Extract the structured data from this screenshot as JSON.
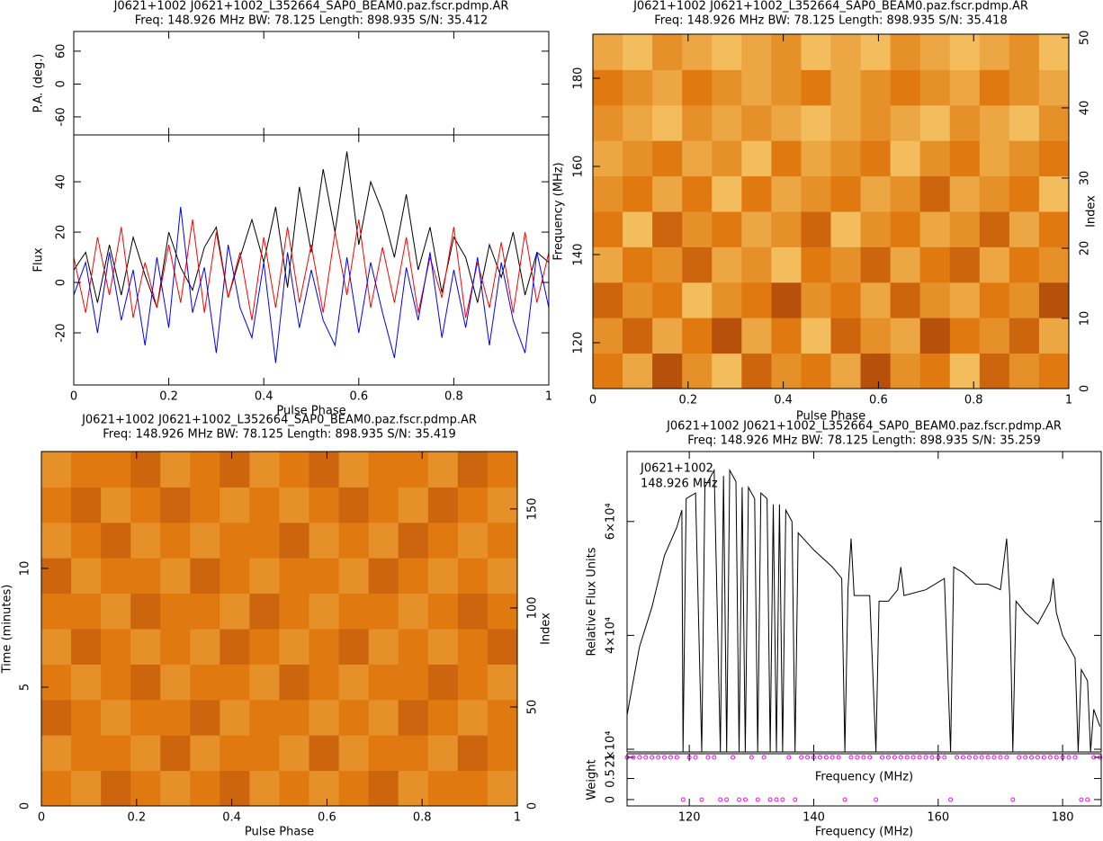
{
  "chart_data": [
    {
      "type": "profile",
      "title": "J0621+1002  J0621+1002_L352664_SAP0_BEAM0.paz.fscr.pdmp.AR",
      "subtitle": "Freq: 148.926 MHz BW: 78.125 Length: 898.935 S/N: 35.412",
      "xlabel": "Pulse Phase",
      "ylabel": "Flux",
      "xlim": [
        0,
        1
      ],
      "xticks": [
        0,
        0.2,
        0.4,
        0.6,
        0.8,
        1
      ],
      "ylim": [
        -40.7,
        58.6
      ],
      "yticks": [
        -20,
        0,
        20,
        40
      ],
      "pa": {
        "ylabel": "P.A. (deg.)",
        "ylim": [
          -93,
          96
        ],
        "yticks": [
          -60,
          0,
          60
        ]
      },
      "x": [
        0,
        0.025,
        0.05,
        0.075,
        0.1,
        0.125,
        0.15,
        0.175,
        0.2,
        0.225,
        0.25,
        0.275,
        0.3,
        0.325,
        0.35,
        0.375,
        0.4,
        0.425,
        0.45,
        0.475,
        0.5,
        0.525,
        0.55,
        0.575,
        0.6,
        0.625,
        0.65,
        0.675,
        0.7,
        0.725,
        0.75,
        0.775,
        0.8,
        0.825,
        0.85,
        0.875,
        0.9,
        0.925,
        0.95,
        0.975,
        1
      ],
      "series": [
        {
          "color": "#000000",
          "values": [
            5,
            12,
            -8,
            15,
            -5,
            18,
            3,
            -10,
            20,
            6,
            -3,
            14,
            22,
            -6,
            10,
            25,
            8,
            30,
            -2,
            38,
            12,
            45,
            20,
            52,
            15,
            40,
            28,
            10,
            35,
            5,
            22,
            -4,
            18,
            10,
            -8,
            15,
            2,
            20,
            -5,
            12,
            8
          ]
        },
        {
          "color": "#ff0000",
          "values": [
            10,
            -12,
            18,
            -5,
            22,
            -14,
            8,
            -10,
            15,
            -8,
            25,
            -12,
            20,
            -6,
            12,
            -15,
            18,
            -10,
            22,
            -8,
            15,
            -12,
            20,
            -5,
            25,
            -10,
            14,
            -8,
            18,
            -12,
            10,
            -6,
            22,
            -14,
            8,
            -10,
            16,
            -12,
            20,
            -8,
            12
          ]
        },
        {
          "color": "#0000ff",
          "values": [
            -5,
            8,
            -20,
            12,
            -15,
            5,
            -25,
            10,
            -18,
            30,
            -12,
            6,
            -28,
            15,
            -10,
            -22,
            8,
            -32,
            12,
            -18,
            5,
            -15,
            -25,
            10,
            -20,
            8,
            -12,
            -30,
            6,
            -15,
            12,
            -22,
            5,
            -18,
            10,
            -25,
            8,
            -15,
            -28,
            12,
            -10
          ]
        }
      ]
    },
    {
      "type": "heatmap",
      "title": "J0621+1002  J0621+1002_L352664_SAP0_BEAM0.paz.fscr.pdmp.AR",
      "subtitle": "Freq: 148.926 MHz BW: 78.125 Length: 898.935 S/N: 35.418",
      "xlabel": "Pulse Phase",
      "ylabel": "Frequency (MHz)",
      "y2label": "Index",
      "xlim": [
        0,
        1
      ],
      "xticks": [
        0,
        0.2,
        0.4,
        0.6,
        0.8,
        1
      ],
      "ylim": [
        109.6,
        190
      ],
      "yticks": [
        120,
        140,
        160,
        180
      ],
      "y2lim": [
        0,
        50.5
      ],
      "y2ticks": [
        0,
        10,
        20,
        30,
        40,
        50
      ],
      "colors": [
        "#7a1000",
        "#e07a10",
        "#ffe890"
      ],
      "z": [
        [
          0.5,
          0.7,
          0.3,
          0.6,
          0.8,
          0.4,
          0.6,
          0.5,
          0.7,
          0.3,
          0.6,
          0.5,
          0.8,
          0.4,
          0.6,
          0.5
        ],
        [
          0.6,
          0.4,
          0.7,
          0.5,
          0.3,
          0.7,
          0.5,
          0.8,
          0.4,
          0.6,
          0.7,
          0.3,
          0.5,
          0.6,
          0.4,
          0.7
        ],
        [
          0.4,
          0.6,
          0.5,
          0.8,
          0.6,
          0.5,
          0.3,
          0.6,
          0.5,
          0.7,
          0.4,
          0.6,
          0.7,
          0.5,
          0.6,
          0.3
        ],
        [
          0.7,
          0.5,
          0.6,
          0.4,
          0.7,
          0.6,
          0.8,
          0.5,
          0.6,
          0.4,
          0.7,
          0.5,
          0.4,
          0.7,
          0.5,
          0.6
        ],
        [
          0.5,
          0.8,
          0.4,
          0.6,
          0.5,
          0.7,
          0.6,
          0.4,
          0.8,
          0.6,
          0.5,
          0.7,
          0.6,
          0.4,
          0.7,
          0.5
        ],
        [
          0.6,
          0.5,
          0.7,
          0.5,
          0.8,
          0.5,
          0.7,
          0.6,
          0.5,
          0.7,
          0.6,
          0.4,
          0.7,
          0.6,
          0.5,
          0.8
        ],
        [
          0.7,
          0.6,
          0.5,
          0.7,
          0.6,
          0.8,
          0.5,
          0.7,
          0.6,
          0.5,
          0.8,
          0.6,
          0.5,
          0.7,
          0.6,
          0.5
        ],
        [
          0.6,
          0.7,
          0.8,
          0.6,
          0.7,
          0.6,
          0.7,
          0.8,
          0.7,
          0.6,
          0.7,
          0.8,
          0.6,
          0.7,
          0.8,
          0.6
        ],
        [
          0.5,
          0.6,
          0.7,
          0.5,
          0.6,
          0.7,
          0.6,
          0.5,
          0.7,
          0.6,
          0.5,
          0.6,
          0.7,
          0.5,
          0.6,
          0.7
        ],
        [
          0.7,
          0.8,
          0.6,
          0.7,
          0.8,
          0.7,
          0.6,
          0.8,
          0.7,
          0.8,
          0.6,
          0.7,
          0.8,
          0.7,
          0.6,
          0.8
        ]
      ]
    },
    {
      "type": "heatmap",
      "title": "J0621+1002  J0621+1002_L352664_SAP0_BEAM0.paz.fscr.pdmp.AR",
      "subtitle": "Freq: 148.926 MHz BW: 78.125 Length: 898.935 S/N: 35.419",
      "xlabel": "Pulse Phase",
      "ylabel": "Time (minutes)",
      "y2label": "Index",
      "xlim": [
        0,
        1
      ],
      "xticks": [
        0,
        0.2,
        0.4,
        0.6,
        0.8,
        1
      ],
      "ylim": [
        0,
        14.92
      ],
      "yticks": [
        0,
        5,
        10
      ],
      "y2lim": [
        0,
        179
      ],
      "y2ticks": [
        0,
        50,
        100,
        150
      ],
      "colors": [
        "#7a1000",
        "#e07a10",
        "#ffe890"
      ],
      "z": [
        [
          0.5,
          0.6,
          0.4,
          0.5,
          0.6,
          0.5,
          0.4,
          0.6,
          0.5,
          0.6,
          0.5,
          0.4,
          0.6,
          0.5,
          0.5,
          0.6
        ],
        [
          0.6,
          0.5,
          0.5,
          0.6,
          0.4,
          0.6,
          0.5,
          0.5,
          0.6,
          0.4,
          0.6,
          0.5,
          0.5,
          0.6,
          0.4,
          0.5
        ],
        [
          0.4,
          0.5,
          0.6,
          0.5,
          0.5,
          0.4,
          0.6,
          0.5,
          0.5,
          0.6,
          0.5,
          0.6,
          0.4,
          0.5,
          0.6,
          0.5
        ],
        [
          0.5,
          0.6,
          0.5,
          0.4,
          0.6,
          0.5,
          0.5,
          0.6,
          0.4,
          0.5,
          0.6,
          0.5,
          0.5,
          0.4,
          0.5,
          0.6
        ],
        [
          0.6,
          0.4,
          0.5,
          0.6,
          0.5,
          0.6,
          0.4,
          0.5,
          0.6,
          0.5,
          0.4,
          0.6,
          0.5,
          0.6,
          0.5,
          0.4
        ],
        [
          0.5,
          0.5,
          0.6,
          0.4,
          0.5,
          0.5,
          0.6,
          0.4,
          0.5,
          0.6,
          0.5,
          0.5,
          0.6,
          0.5,
          0.4,
          0.5
        ],
        [
          0.4,
          0.6,
          0.5,
          0.5,
          0.6,
          0.4,
          0.5,
          0.6,
          0.5,
          0.5,
          0.6,
          0.4,
          0.5,
          0.6,
          0.5,
          0.6
        ],
        [
          0.6,
          0.5,
          0.4,
          0.6,
          0.5,
          0.6,
          0.5,
          0.5,
          0.4,
          0.6,
          0.5,
          0.6,
          0.4,
          0.5,
          0.6,
          0.5
        ],
        [
          0.5,
          0.4,
          0.6,
          0.5,
          0.4,
          0.5,
          0.6,
          0.5,
          0.6,
          0.5,
          0.4,
          0.5,
          0.6,
          0.4,
          0.5,
          0.6
        ],
        [
          0.6,
          0.5,
          0.5,
          0.4,
          0.6,
          0.5,
          0.4,
          0.6,
          0.5,
          0.4,
          0.6,
          0.5,
          0.5,
          0.6,
          0.4,
          0.5
        ]
      ]
    },
    {
      "type": "spectrum",
      "title": "J0621+1002  J0621+1002_L352664_SAP0_BEAM0.paz.fscr.pdmp.AR",
      "subtitle": "Freq: 148.926 MHz BW: 78.125 Length: 898.935 S/N: 35.259",
      "annotations": [
        "J0621+1002",
        "148.926 MHz"
      ],
      "xlabel": "Frequency (MHz)",
      "ylabel": "Relative Flux Units",
      "xlim": [
        110,
        186.2
      ],
      "xticks": [
        120,
        140,
        160,
        180
      ],
      "ylim": [
        19528,
        72283
      ],
      "yticks": [
        {
          "value": 20000,
          "label": "2×10⁴"
        },
        {
          "value": 40000,
          "label": "4×10⁴"
        },
        {
          "value": 60000,
          "label": "6×10⁴"
        }
      ],
      "color": "#000000",
      "x": [
        110,
        112,
        114,
        116,
        118,
        118.8,
        119,
        119.5,
        121,
        122,
        122.5,
        124,
        125,
        125.5,
        126,
        126.5,
        127.5,
        128,
        128.5,
        129,
        129.5,
        130.5,
        131,
        131.5,
        132.5,
        133,
        133.5,
        134,
        134.5,
        135,
        135.5,
        136.5,
        137,
        137.5,
        140,
        143,
        144.5,
        145,
        145.5,
        146,
        146.5,
        149,
        150,
        150.5,
        152,
        153.5,
        154,
        154.5,
        158,
        161,
        162,
        162.5,
        164,
        166,
        168,
        170,
        171,
        171.5,
        172,
        172.5,
        174,
        176,
        178,
        178.5,
        179,
        180,
        182,
        182.5,
        183,
        184,
        184.5,
        185,
        186
      ],
      "values": [
        26000,
        38000,
        45000,
        54000,
        59000,
        62000,
        19600,
        64000,
        65000,
        19600,
        66000,
        69000,
        19600,
        68000,
        19600,
        69000,
        67000,
        19600,
        66000,
        19600,
        66000,
        64000,
        19600,
        65000,
        64000,
        19600,
        63000,
        19600,
        63000,
        19600,
        62000,
        60000,
        19600,
        58000,
        55000,
        52000,
        50000,
        19600,
        48000,
        57000,
        47000,
        47000,
        19600,
        46000,
        46000,
        48000,
        52000,
        47000,
        48000,
        50000,
        19600,
        52000,
        51000,
        49000,
        49000,
        48000,
        57000,
        47000,
        19600,
        46000,
        44000,
        42000,
        46000,
        50000,
        44000,
        40000,
        36000,
        19600,
        34000,
        32000,
        19600,
        27000,
        24000
      ],
      "weights": {
        "ylabel": "Weight",
        "ylim": [
          -0.15,
          1.085
        ],
        "yticks": [
          0,
          0.5,
          1
        ],
        "color": "#ff00ff",
        "x": [
          110,
          111,
          112,
          113,
          114,
          115,
          116,
          117,
          118,
          119,
          120,
          121,
          122,
          123,
          124,
          125,
          126,
          127,
          128,
          129,
          130,
          131,
          132,
          133,
          134,
          135,
          136,
          137,
          138,
          139,
          140,
          141,
          142,
          143,
          144,
          145,
          146,
          147,
          148,
          149,
          150,
          151,
          152,
          153,
          154,
          155,
          156,
          157,
          158,
          159,
          160,
          161,
          162,
          163,
          164,
          165,
          166,
          167,
          168,
          169,
          170,
          171,
          172,
          173,
          174,
          175,
          176,
          177,
          178,
          179,
          180,
          181,
          182,
          183,
          184,
          185,
          186
        ],
        "values": [
          1,
          1,
          1,
          1,
          1,
          1,
          1,
          1,
          1,
          0,
          1,
          1,
          0,
          1,
          1,
          0,
          0,
          1,
          0,
          0,
          1,
          0,
          1,
          0,
          0,
          0,
          1,
          0,
          1,
          1,
          1,
          1,
          1,
          1,
          1,
          0,
          1,
          1,
          1,
          1,
          0,
          1,
          1,
          1,
          1,
          1,
          1,
          1,
          1,
          1,
          1,
          1,
          0,
          1,
          1,
          1,
          1,
          1,
          1,
          1,
          1,
          1,
          0,
          1,
          1,
          1,
          1,
          1,
          1,
          1,
          1,
          1,
          1,
          0,
          0,
          1,
          1
        ]
      }
    }
  ]
}
